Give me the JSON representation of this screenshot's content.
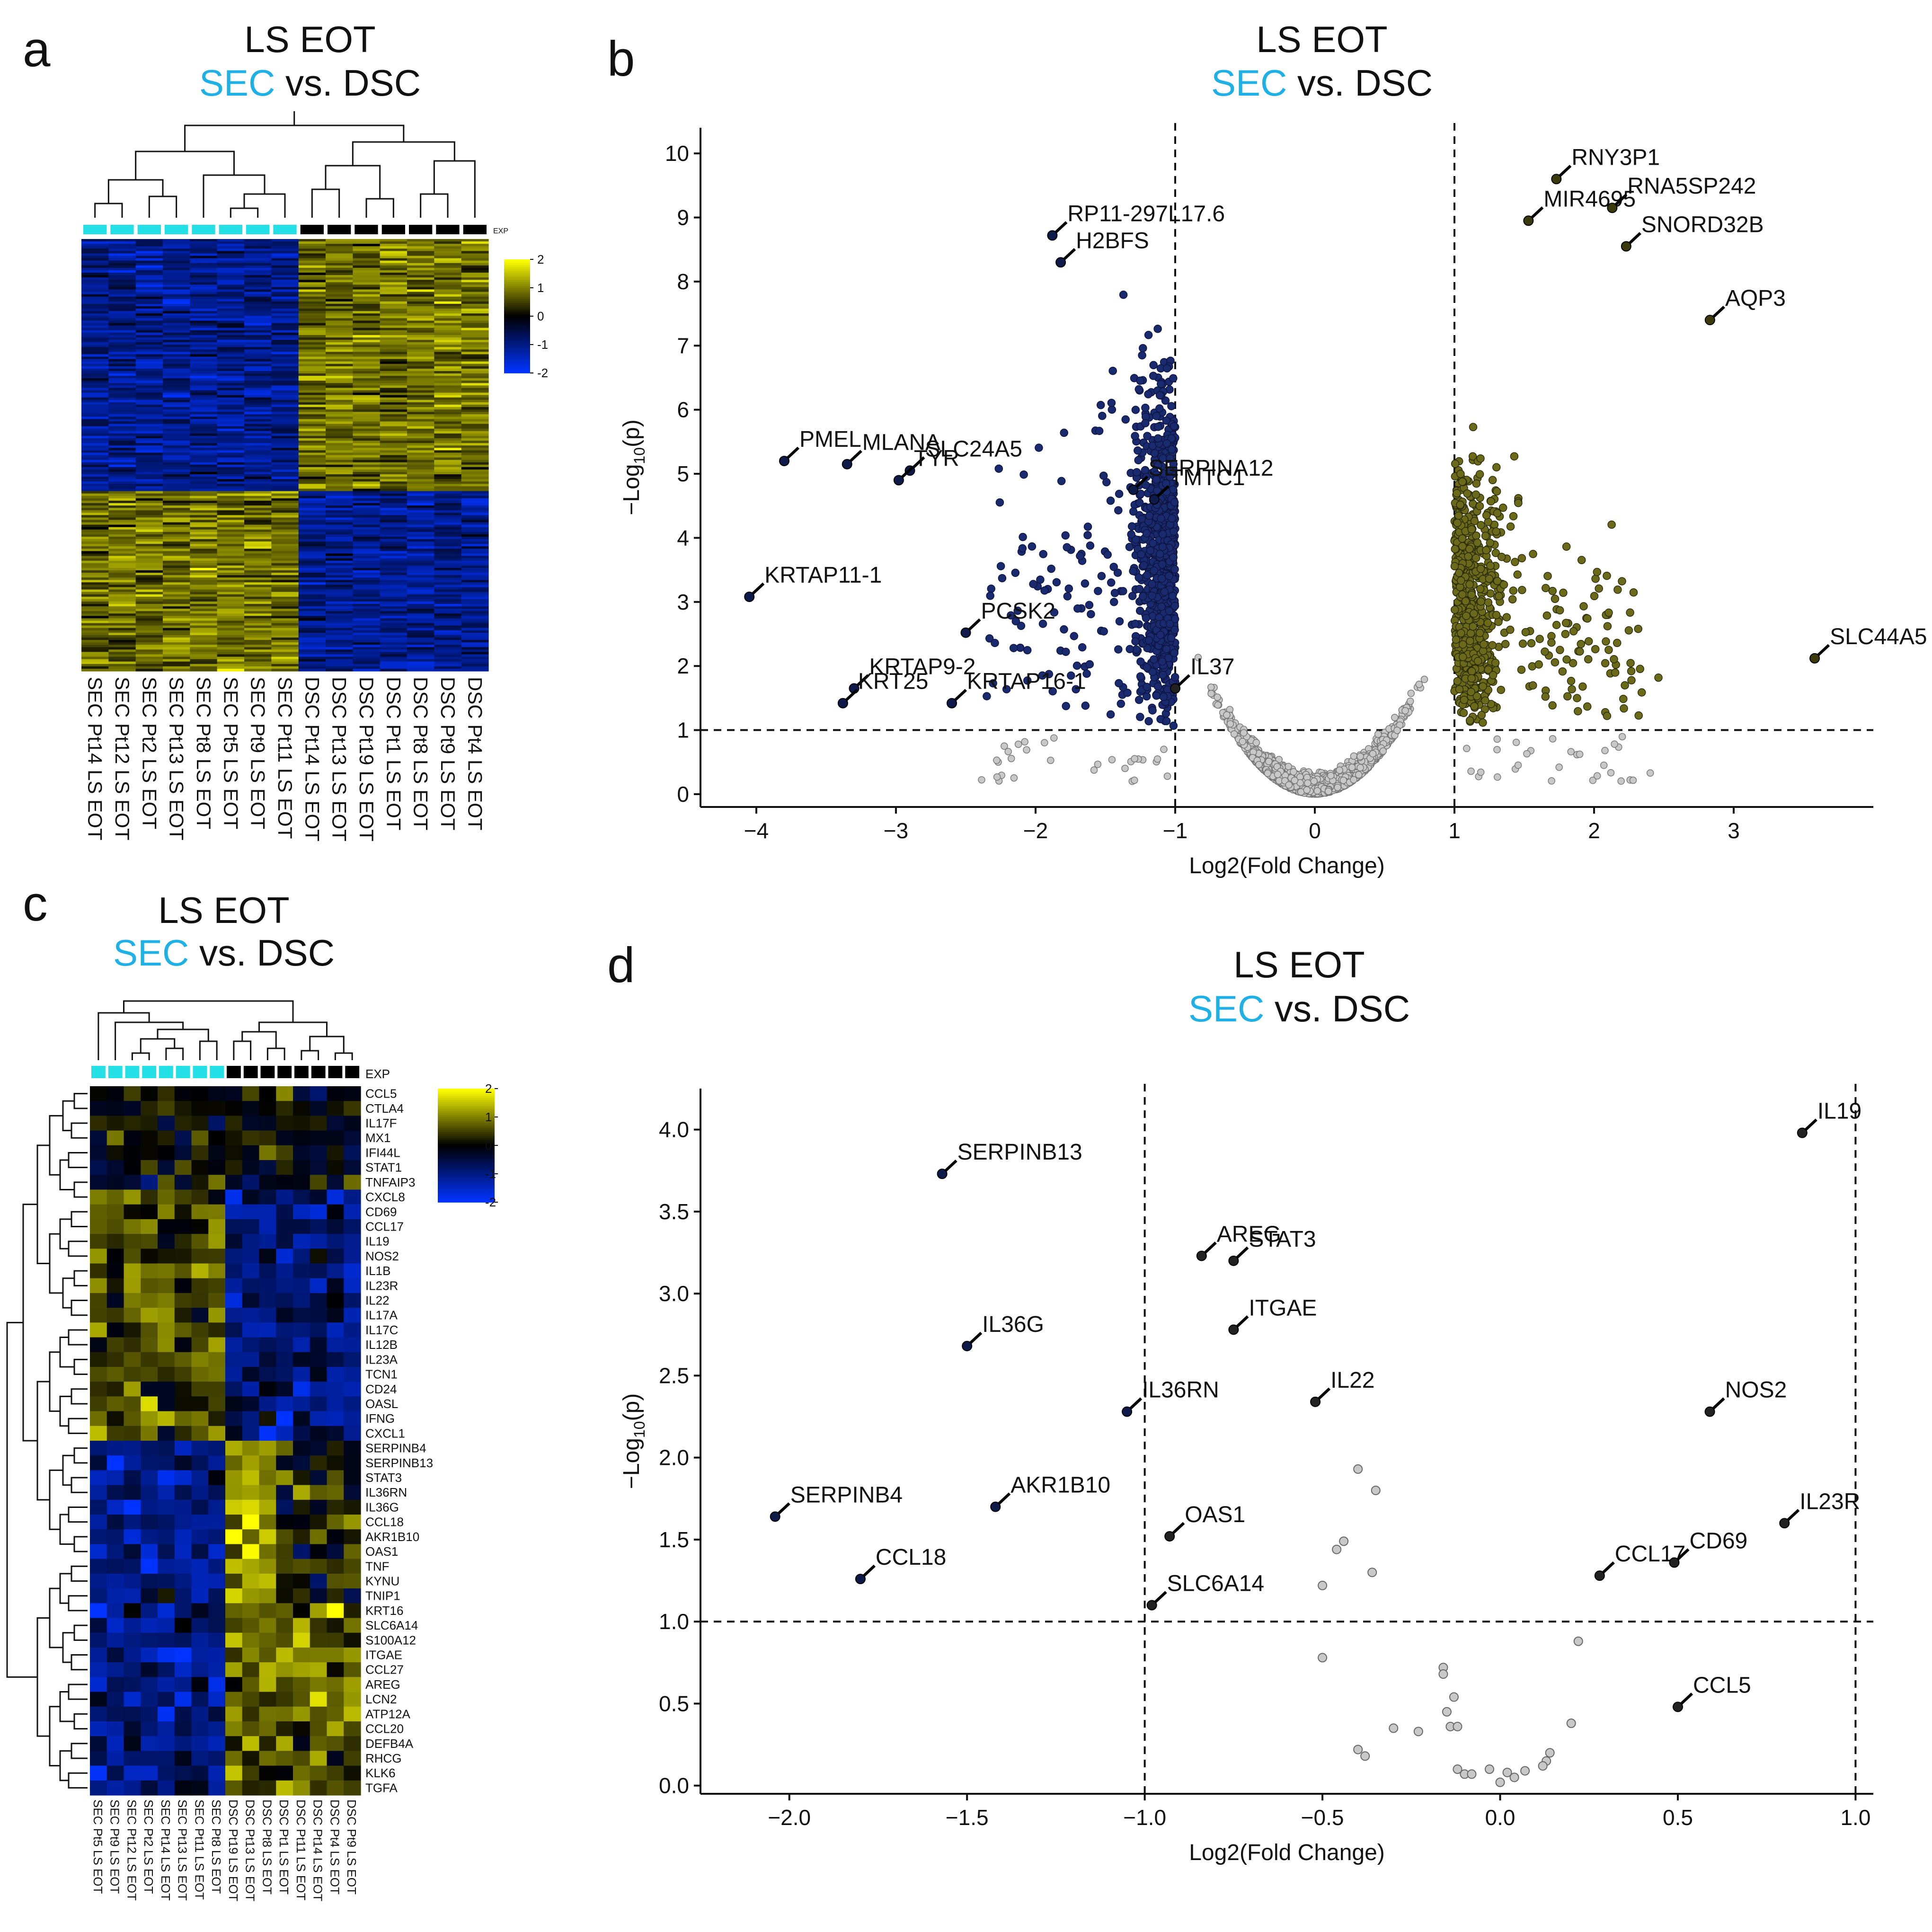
{
  "panels": {
    "a": {
      "letter": "a",
      "title_line1": "LS EOT",
      "title_sec": "SEC",
      "title_rest": " vs. DSC",
      "exp_label": "EXP",
      "samples": [
        "SEC Pt14 LS EOT",
        "SEC Pt12 LS EOT",
        "SEC Pt2 LS EOT",
        "SEC Pt13 LS EOT",
        "SEC Pt8 LS EOT",
        "SEC Pt5 LS EOT",
        "SEC Pt9 LS EOT",
        "SEC Pt11 LS EOT",
        "DSC Pt14 LS EOT",
        "DSC Pt13 LS EOT",
        "DSC Pt19 LS EOT",
        "DSC Pt1 LS EOT",
        "DSC Pt8 LS EOT",
        "DSC Pt9 LS EOT",
        "DSC Pt4 LS EOT"
      ],
      "colorbar_ticks": [
        "2",
        "1",
        "0",
        "-1",
        "-2"
      ]
    },
    "b": {
      "letter": "b",
      "title_line1": "LS EOT",
      "title_sec": "SEC",
      "title_rest": " vs. DSC"
    },
    "c": {
      "letter": "c",
      "title_line1": "LS EOT",
      "title_sec": "SEC",
      "title_rest": " vs. DSC",
      "exp_label": "EXP",
      "samples": [
        "SEC Pt5 LS EOT",
        "SEC Pt9 LS EOT",
        "SEC Pt12 LS EOT",
        "SEC Pt2 LS EOT",
        "SEC Pt14 LS EOT",
        "SEC Pt13 LS EOT",
        "SEC Pt11 LS EOT",
        "SEC Pt8 LS EOT",
        "DSC Pt19 LS EOT",
        "DSC Pt13 LS EOT",
        "DSC Pt8 LS EOT",
        "DSC Pt1 LS EOT",
        "DSC Pt11 LS EOT",
        "DSC Pt14 LS EOT",
        "DSC Pt4 LS EOT",
        "DSC Pt9 LS EOT"
      ],
      "genes": [
        "CCL5",
        "CTLA4",
        "IL17F",
        "MX1",
        "IFI44L",
        "STAT1",
        "TNFAIP3",
        "CXCL8",
        "CD69",
        "CCL17",
        "IL19",
        "NOS2",
        "IL1B",
        "IL23R",
        "IL22",
        "IL17A",
        "IL17C",
        "IL12B",
        "IL23A",
        "TCN1",
        "CD24",
        "OASL",
        "IFNG",
        "CXCL1",
        "SERPINB4",
        "SERPINB13",
        "STAT3",
        "IL36RN",
        "IL36G",
        "CCL18",
        "AKR1B10",
        "OAS1",
        "TNF",
        "KYNU",
        "TNIP1",
        "KRT16",
        "SLC6A14",
        "S100A12",
        "ITGAE",
        "CCL27",
        "AREG",
        "LCN2",
        "ATP12A",
        "CCL20",
        "DEFB4A",
        "RHCG",
        "KLK6",
        "TGFA"
      ],
      "colorbar_ticks": [
        "2",
        "1",
        "0",
        "-1",
        "-2"
      ]
    },
    "d": {
      "letter": "d",
      "title_line1": "LS EOT",
      "title_sec": "SEC",
      "title_rest": " vs. DSC"
    }
  },
  "colors": {
    "sec": "#1fb0e6",
    "down": "#1a2a6e",
    "up": "#6b6a1a",
    "ns": "#c8c8c8",
    "heat_low": "#0033ff",
    "heat_mid": "#000000",
    "heat_high": "#ffff00"
  },
  "chart_data": [
    {
      "id": "b",
      "type": "scatter",
      "title": "LS EOT SEC vs. DSC",
      "xlabel": "Log2(Fold Change)",
      "ylabel_main": "-Log",
      "ylabel_sub": "10",
      "ylabel_tail": "(p)",
      "xlim": [
        -4.4,
        4.0
      ],
      "ylim": [
        -0.2,
        10.4
      ],
      "xticks": [
        -4,
        -3,
        -2,
        -1,
        0,
        1,
        2,
        3
      ],
      "yticks": [
        0,
        1,
        2,
        3,
        4,
        5,
        6,
        7,
        8,
        9,
        10
      ],
      "thresholds": {
        "x": [
          -1,
          1
        ],
        "y": 1
      },
      "labeled_points": [
        {
          "name": "RNY3P1",
          "x": 1.73,
          "y": 9.6
        },
        {
          "name": "MIR4695",
          "x": 1.53,
          "y": 8.95
        },
        {
          "name": "RNA5SP242",
          "x": 2.13,
          "y": 9.15
        },
        {
          "name": "SNORD32B",
          "x": 2.23,
          "y": 8.55
        },
        {
          "name": "AQP3",
          "x": 2.83,
          "y": 7.4
        },
        {
          "name": "SLC44A5",
          "x": 3.58,
          "y": 2.12
        },
        {
          "name": "RP11-297L17.6",
          "x": -1.88,
          "y": 8.72
        },
        {
          "name": "H2BFS",
          "x": -1.82,
          "y": 8.3
        },
        {
          "name": "PMEL",
          "x": -3.8,
          "y": 5.2
        },
        {
          "name": "MLANA",
          "x": -3.35,
          "y": 5.15
        },
        {
          "name": "SLC24A5",
          "x": -2.9,
          "y": 5.05
        },
        {
          "name": "TYR",
          "x": -2.98,
          "y": 4.9
        },
        {
          "name": "SERPINA12",
          "x": -1.3,
          "y": 4.75
        },
        {
          "name": "TMTC1",
          "x": -1.15,
          "y": 4.6
        },
        {
          "name": "KRTAP11-1",
          "x": -4.05,
          "y": 3.08
        },
        {
          "name": "PCSK2",
          "x": -2.5,
          "y": 2.52
        },
        {
          "name": "KRTAP9-2",
          "x": -3.3,
          "y": 1.65
        },
        {
          "name": "KRT25",
          "x": -3.38,
          "y": 1.42
        },
        {
          "name": "KRTAP16-1",
          "x": -2.6,
          "y": 1.42
        },
        {
          "name": "IL37",
          "x": -1.0,
          "y": 1.65
        }
      ]
    },
    {
      "id": "d",
      "type": "scatter",
      "title": "LS EOT SEC vs. DSC",
      "xlabel": "Log2(Fold Change)",
      "ylabel_main": "-Log",
      "ylabel_sub": "10",
      "ylabel_tail": "(p)",
      "xlim": [
        -2.25,
        1.05
      ],
      "ylim": [
        -0.05,
        4.25
      ],
      "xticks": [
        -2.0,
        -1.5,
        -1.0,
        -0.5,
        0.0,
        0.5,
        1.0
      ],
      "yticks": [
        0.0,
        0.5,
        1.0,
        1.5,
        2.0,
        2.5,
        3.0,
        3.5,
        4.0
      ],
      "tick_labels_x": [
        "-2.0",
        "-1.5",
        "-1.0",
        "-0.5",
        "0.0",
        "0.5",
        "1.0"
      ],
      "tick_labels_y": [
        "0.0",
        "0.5",
        "1.0",
        "1.5",
        "2.0",
        "2.5",
        "3.0",
        "3.5",
        "4.0"
      ],
      "thresholds": {
        "x": [
          -1,
          1
        ],
        "y": 1
      },
      "labeled_points": [
        {
          "name": "SERPINB13",
          "x": -1.57,
          "y": 3.73
        },
        {
          "name": "AREG",
          "x": -0.84,
          "y": 3.23
        },
        {
          "name": "STAT3",
          "x": -0.75,
          "y": 3.2
        },
        {
          "name": "ITGAE",
          "x": -0.75,
          "y": 2.78
        },
        {
          "name": "IL36G",
          "x": -1.5,
          "y": 2.68
        },
        {
          "name": "IL36RN",
          "x": -1.05,
          "y": 2.28
        },
        {
          "name": "IL22",
          "x": -0.52,
          "y": 2.34
        },
        {
          "name": "NOS2",
          "x": 0.59,
          "y": 2.28
        },
        {
          "name": "SERPINB4",
          "x": -2.04,
          "y": 1.64
        },
        {
          "name": "AKR1B10",
          "x": -1.42,
          "y": 1.7
        },
        {
          "name": "OAS1",
          "x": -0.93,
          "y": 1.52
        },
        {
          "name": "CCL18",
          "x": -1.8,
          "y": 1.26
        },
        {
          "name": "SLC6A14",
          "x": -0.98,
          "y": 1.1
        },
        {
          "name": "CCL17",
          "x": 0.28,
          "y": 1.28
        },
        {
          "name": "CD69",
          "x": 0.49,
          "y": 1.36
        },
        {
          "name": "IL23R",
          "x": 0.8,
          "y": 1.6
        },
        {
          "name": "IL19",
          "x": 0.85,
          "y": 3.98
        },
        {
          "name": "CCL5",
          "x": 0.5,
          "y": 0.48
        }
      ],
      "other_points": [
        {
          "x": -0.4,
          "y": 1.93
        },
        {
          "x": -0.35,
          "y": 1.8
        },
        {
          "x": -0.44,
          "y": 1.49
        },
        {
          "x": -0.46,
          "y": 1.44
        },
        {
          "x": -0.36,
          "y": 1.3
        },
        {
          "x": -0.5,
          "y": 1.22
        },
        {
          "x": -0.5,
          "y": 0.78
        },
        {
          "x": 0.22,
          "y": 0.88
        },
        {
          "x": -0.16,
          "y": 0.72
        },
        {
          "x": -0.16,
          "y": 0.68
        },
        {
          "x": -0.13,
          "y": 0.54
        },
        {
          "x": -0.15,
          "y": 0.45
        },
        {
          "x": -0.14,
          "y": 0.36
        },
        {
          "x": -0.12,
          "y": 0.36
        },
        {
          "x": -0.3,
          "y": 0.35
        },
        {
          "x": -0.23,
          "y": 0.33
        },
        {
          "x": 0.2,
          "y": 0.38
        },
        {
          "x": -0.4,
          "y": 0.22
        },
        {
          "x": -0.38,
          "y": 0.18
        },
        {
          "x": 0.14,
          "y": 0.2
        },
        {
          "x": 0.13,
          "y": 0.15
        },
        {
          "x": -0.12,
          "y": 0.1
        },
        {
          "x": -0.1,
          "y": 0.07
        },
        {
          "x": -0.08,
          "y": 0.07
        },
        {
          "x": -0.03,
          "y": 0.1
        },
        {
          "x": 0.0,
          "y": 0.02
        },
        {
          "x": 0.02,
          "y": 0.08
        },
        {
          "x": 0.04,
          "y": 0.05
        },
        {
          "x": 0.07,
          "y": 0.09
        },
        {
          "x": 0.12,
          "y": 0.12
        }
      ]
    }
  ]
}
